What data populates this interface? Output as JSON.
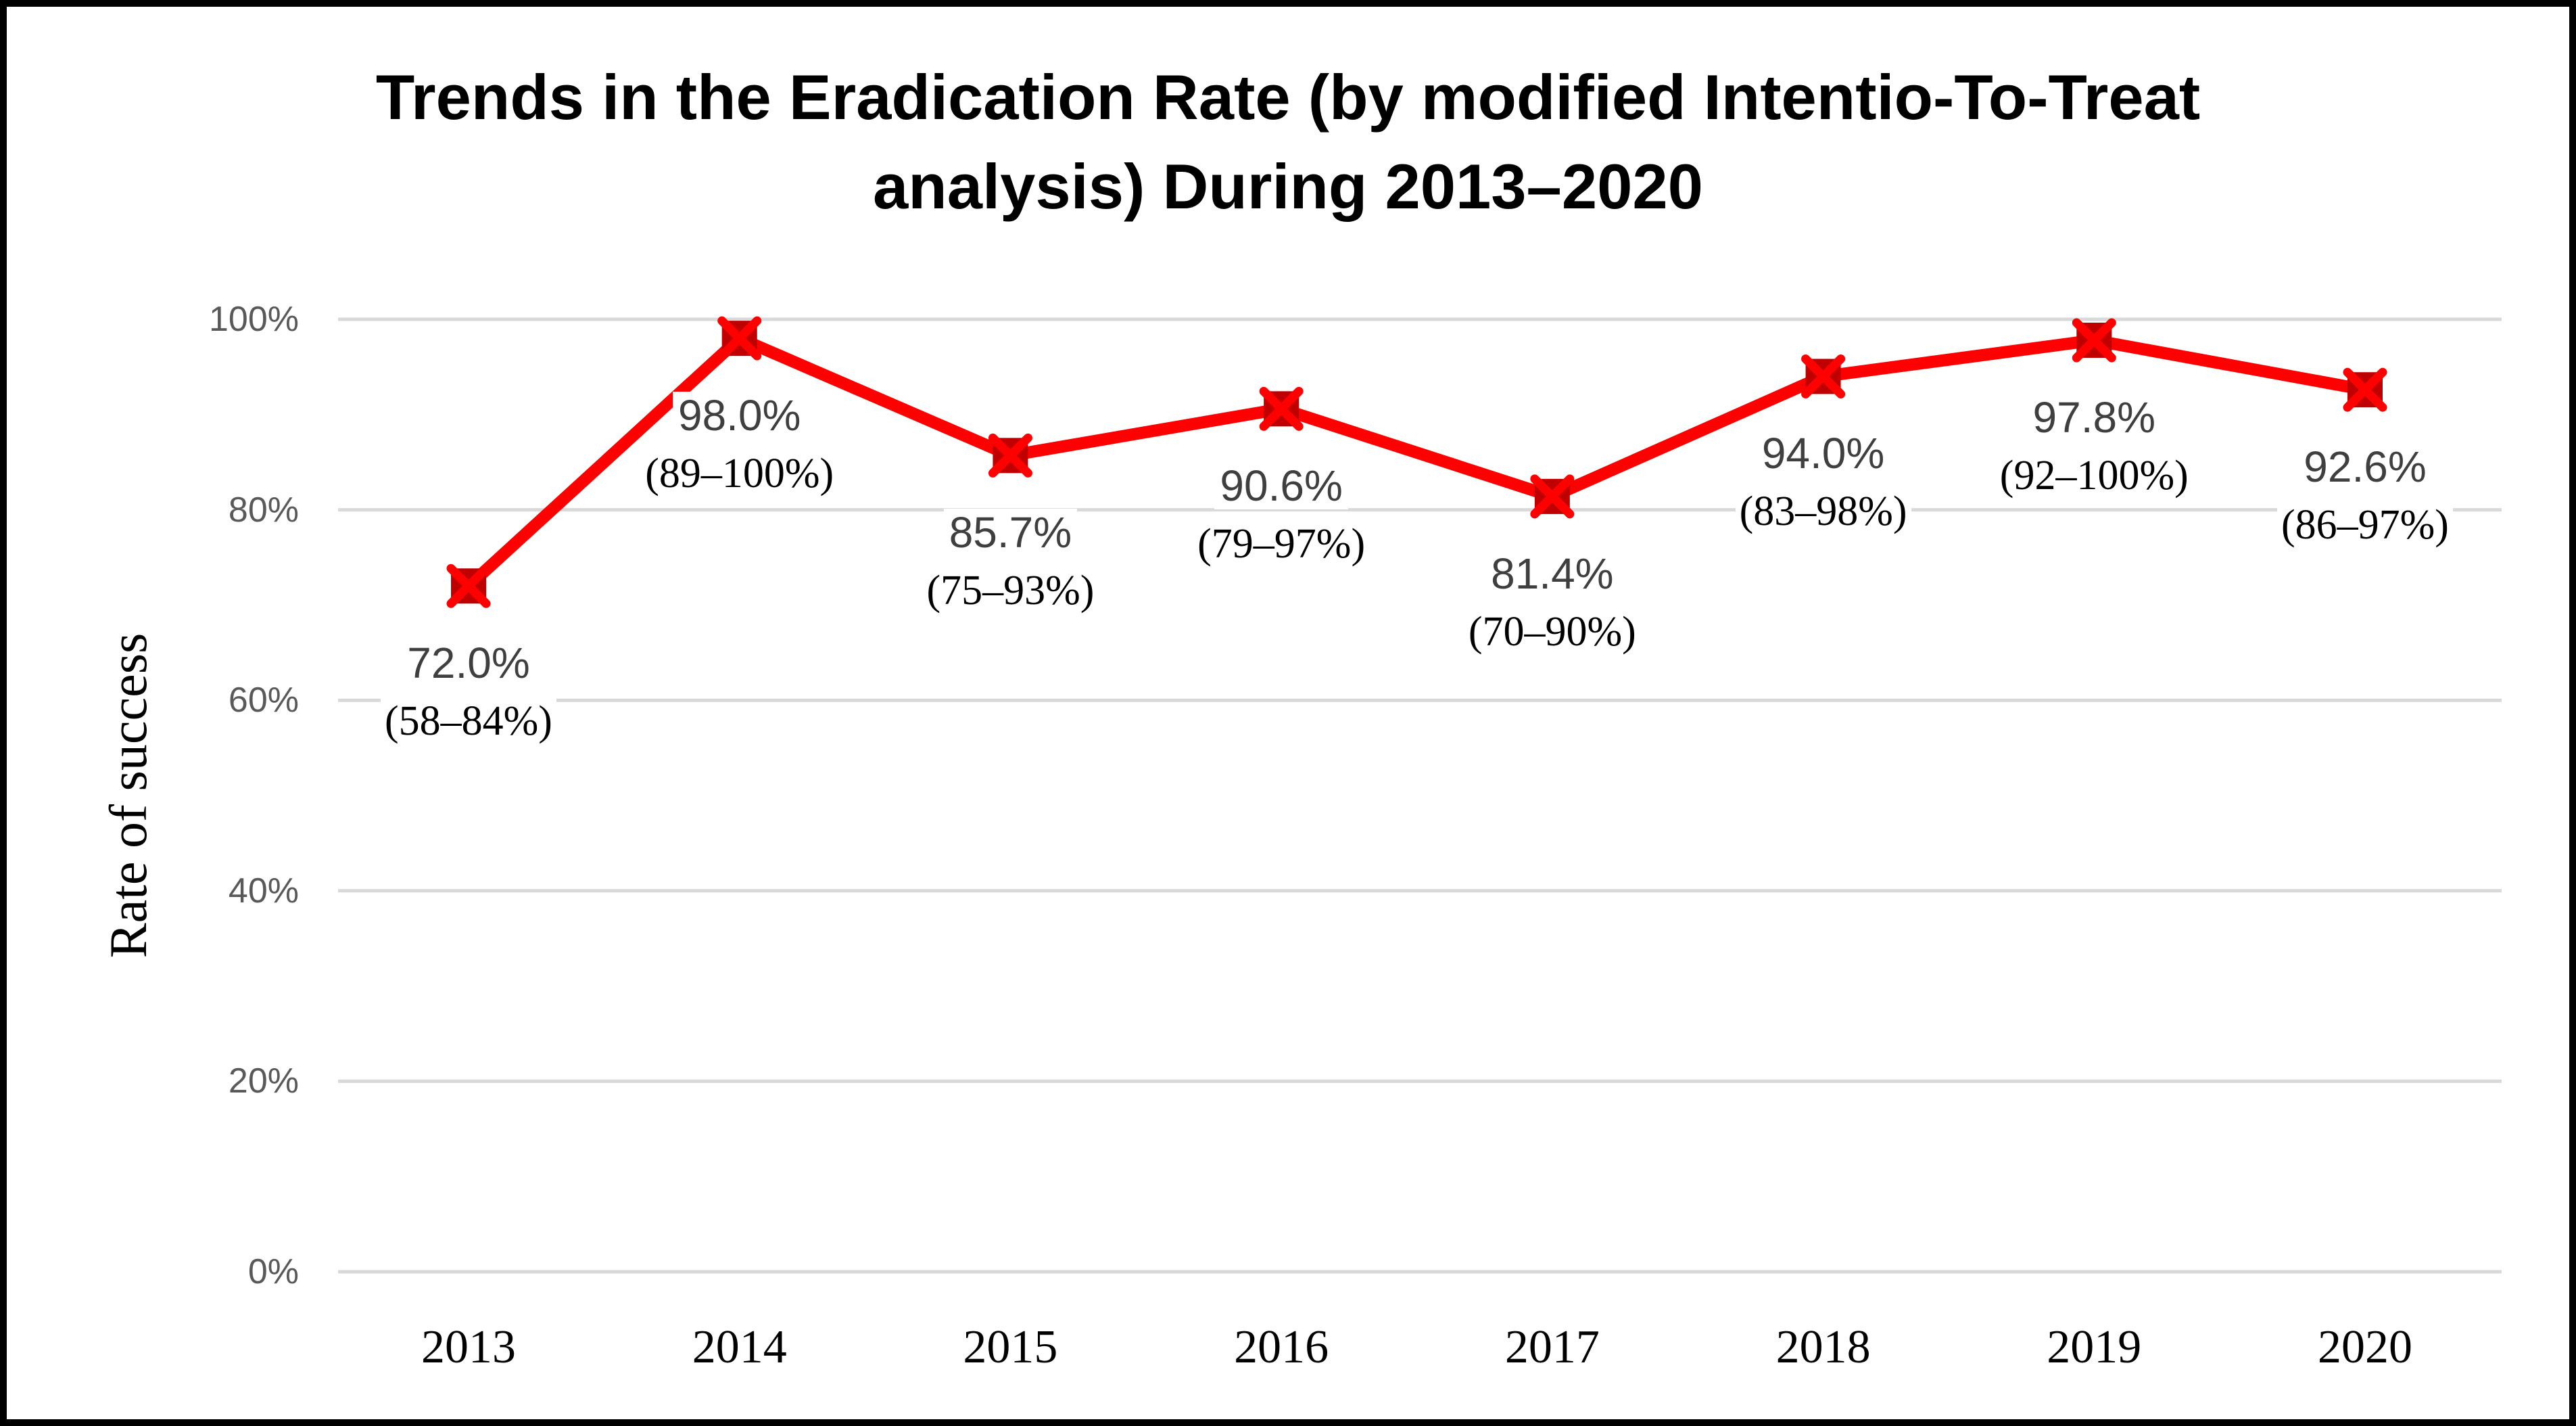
{
  "chart_data": {
    "type": "line",
    "title": "Trends in the Eradication Rate (by modified Intentio-To-Treat analysis) During 2013–2020",
    "title_lines": [
      "Trends in the Eradication Rate (by modified Intentio-To-Treat",
      "analysis) During 2013–2020"
    ],
    "ylabel": "Rate of success",
    "xlabel": "",
    "categories": [
      "2013",
      "2014",
      "2015",
      "2016",
      "2017",
      "2018",
      "2019",
      "2020"
    ],
    "values": [
      72.0,
      98.0,
      85.7,
      90.6,
      81.4,
      94.0,
      97.8,
      92.6
    ],
    "point_labels": [
      "72.0%",
      "98.0%",
      "85.7%",
      "90.6%",
      "81.4%",
      "94.0%",
      "97.8%",
      "92.6%"
    ],
    "ci_labels": [
      "(58–84%)",
      "(89–100%)",
      "(75–93%)",
      "(79–97%)",
      "(70–90%)",
      "(83–98%)",
      "(92–100%)",
      "(86–97%)"
    ],
    "y_ticks": [
      "0%",
      "20%",
      "40%",
      "60%",
      "80%",
      "100%"
    ],
    "y_tick_values": [
      0,
      20,
      40,
      60,
      80,
      100
    ],
    "ylim": [
      0,
      100
    ],
    "grid": "horizontal",
    "legend": "none",
    "colors": {
      "line": "#FF0000",
      "marker_fill": "#C00000",
      "marker_cross": "#FF0000",
      "gridline": "#D9D9D9",
      "tick_label": "#595959",
      "data_label": "#3F3F3F",
      "ci_label": "#000000",
      "border": "#000000",
      "background": "#FFFFFF"
    }
  }
}
